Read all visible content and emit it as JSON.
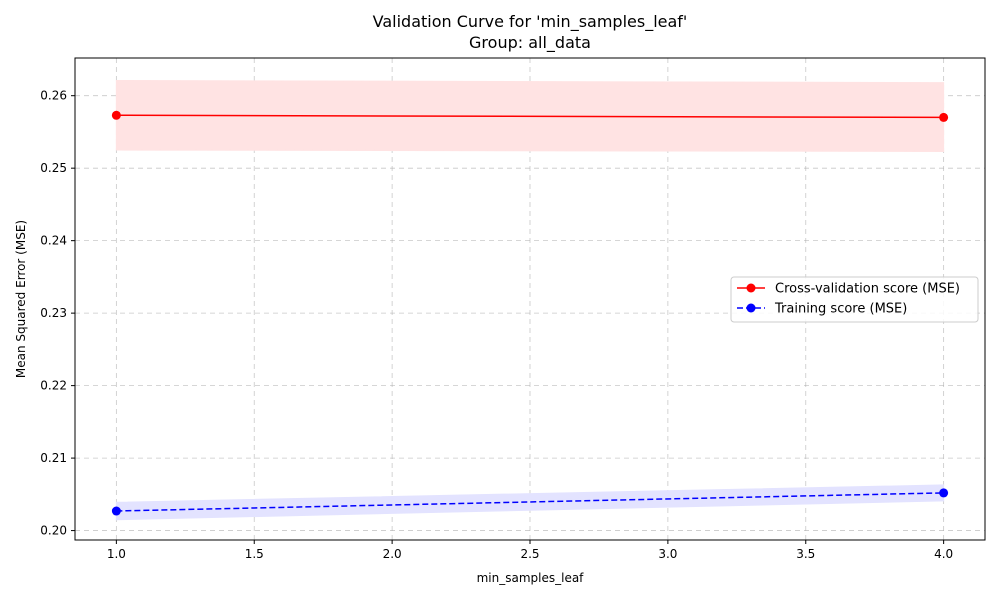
{
  "chart_data": {
    "type": "line",
    "title": "Validation Curve for 'min_samples_leaf'",
    "subtitle": "Group: all_data",
    "xlabel": "min_samples_leaf",
    "ylabel": "Mean Squared Error (MSE)",
    "xlim": [
      0.85,
      4.15
    ],
    "ylim": [
      0.1987,
      0.2652
    ],
    "x_ticks": [
      1.0,
      1.5,
      2.0,
      2.5,
      3.0,
      3.5,
      4.0
    ],
    "x_tick_labels": [
      "1.0",
      "1.5",
      "2.0",
      "2.5",
      "3.0",
      "3.5",
      "4.0"
    ],
    "y_ticks": [
      0.2,
      0.21,
      0.22,
      0.23,
      0.24,
      0.25,
      0.26
    ],
    "y_tick_labels": [
      "0.20",
      "0.21",
      "0.22",
      "0.23",
      "0.24",
      "0.25",
      "0.26"
    ],
    "grid": true,
    "legend_position": "center-right",
    "series": [
      {
        "name": "Cross-validation score (MSE)",
        "color": "#ff0000",
        "line_style": "solid",
        "marker": "circle",
        "x": [
          1.0,
          4.0
        ],
        "y": [
          0.2573,
          0.257
        ],
        "band_lower": [
          0.2525,
          0.2523
        ],
        "band_upper": [
          0.2621,
          0.2618
        ],
        "band_color": "#ffe3e3"
      },
      {
        "name": "Training score (MSE)",
        "color": "#0000ff",
        "line_style": "dashed",
        "marker": "circle",
        "x": [
          1.0,
          4.0
        ],
        "y": [
          0.2027,
          0.2052
        ],
        "band_lower": [
          0.2015,
          0.2041
        ],
        "band_upper": [
          0.2039,
          0.2063
        ],
        "band_color": "#e3e3ff"
      }
    ]
  }
}
